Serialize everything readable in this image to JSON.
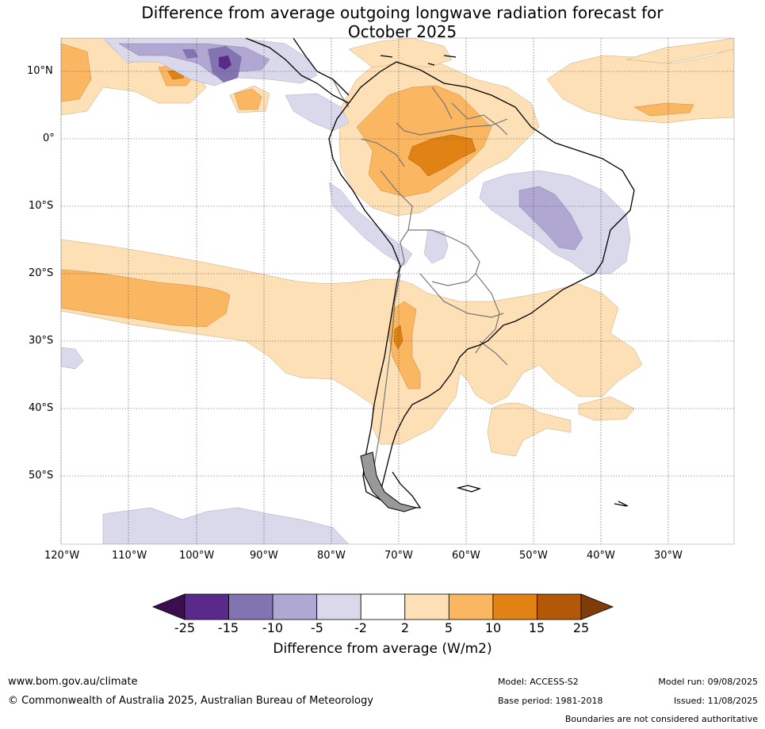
{
  "title_line1": "Difference from average outgoing longwave radiation forecast for",
  "title_line2": "October 2025",
  "lat_ticks": [
    "10°N",
    "0°",
    "10°S",
    "20°S",
    "30°S",
    "40°S",
    "50°S"
  ],
  "lon_ticks": [
    "120°W",
    "110°W",
    "100°W",
    "90°W",
    "80°W",
    "70°W",
    "60°W",
    "50°W",
    "40°W",
    "30°W"
  ],
  "colorbar": {
    "title": "Difference from average (W/m2)",
    "labels": [
      "-25",
      "-15",
      "-10",
      "-5",
      "-2",
      "2",
      "5",
      "10",
      "15",
      "25"
    ],
    "colors": [
      "#3b0f4f",
      "#5a2a8a",
      "#8274b0",
      "#b0a8d2",
      "#d9d9eb",
      "#ffffff",
      "#fee0b6",
      "#fbb661",
      "#e08214",
      "#b35806",
      "#7f3b08"
    ]
  },
  "footer": {
    "website": "www.bom.gov.au/climate",
    "copyright": "© Commonwealth of Australia 2025, Australian Bureau of Meteorology",
    "model": "Model: ACCESS-S2",
    "base_period": "Base period: 1981-2018",
    "model_run": "Model run: 09/08/2025",
    "issued": "Issued: 11/08/2025",
    "disclaimer": "Boundaries are not considered authoritative"
  }
}
